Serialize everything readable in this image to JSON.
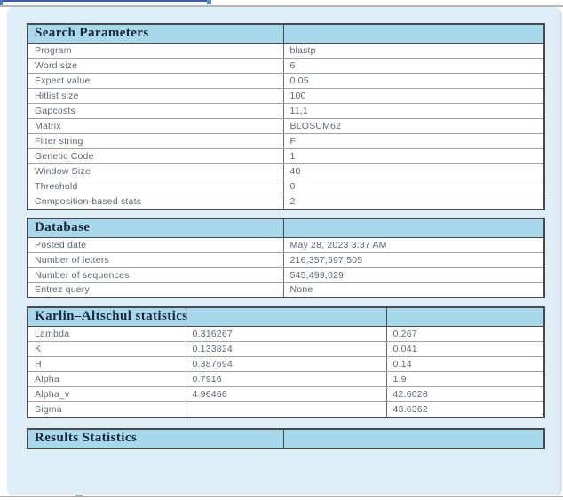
{
  "panel": {
    "background": "#ddeef7",
    "header_background": "#a7d8ec",
    "header_text_color": "#1d2738",
    "body_text_color": "#5e6670"
  },
  "tables": {
    "search_parameters": {
      "title": "Search Parameters",
      "rows": [
        [
          "Program",
          "blastp"
        ],
        [
          "Word size",
          "6"
        ],
        [
          "Expect value",
          "0.05"
        ],
        [
          "Hitlist size",
          "100"
        ],
        [
          "Gapcosts",
          "11,1"
        ],
        [
          "Matrix",
          "BLOSUM62"
        ],
        [
          "Filter string",
          "F"
        ],
        [
          "Genetic Code",
          "1"
        ],
        [
          "Window Size",
          "40"
        ],
        [
          "Threshold",
          "0"
        ],
        [
          "Composition-based stats",
          "2"
        ]
      ]
    },
    "database": {
      "title": "Database",
      "rows": [
        [
          "Posted date",
          "May 28, 2023 3:37 AM"
        ],
        [
          "Number of letters",
          "216,357,597,505"
        ],
        [
          "Number of sequences",
          "545,499,029"
        ],
        [
          "Entrez query",
          "None"
        ]
      ]
    },
    "karlin_altschul": {
      "title": "Karlin–Altschul statistics",
      "rows": [
        [
          "Lambda",
          "0.316267",
          "0.267"
        ],
        [
          "K",
          "0.133824",
          "0.041"
        ],
        [
          "H",
          "0.387694",
          "0.14"
        ],
        [
          "Alpha",
          "0.7916",
          "1.9"
        ],
        [
          "Alpha_v",
          "4.96466",
          "42.6028"
        ],
        [
          "Sigma",
          "",
          "43.6362"
        ]
      ]
    },
    "results_statistics": {
      "title": "Results Statistics",
      "rows": []
    }
  }
}
